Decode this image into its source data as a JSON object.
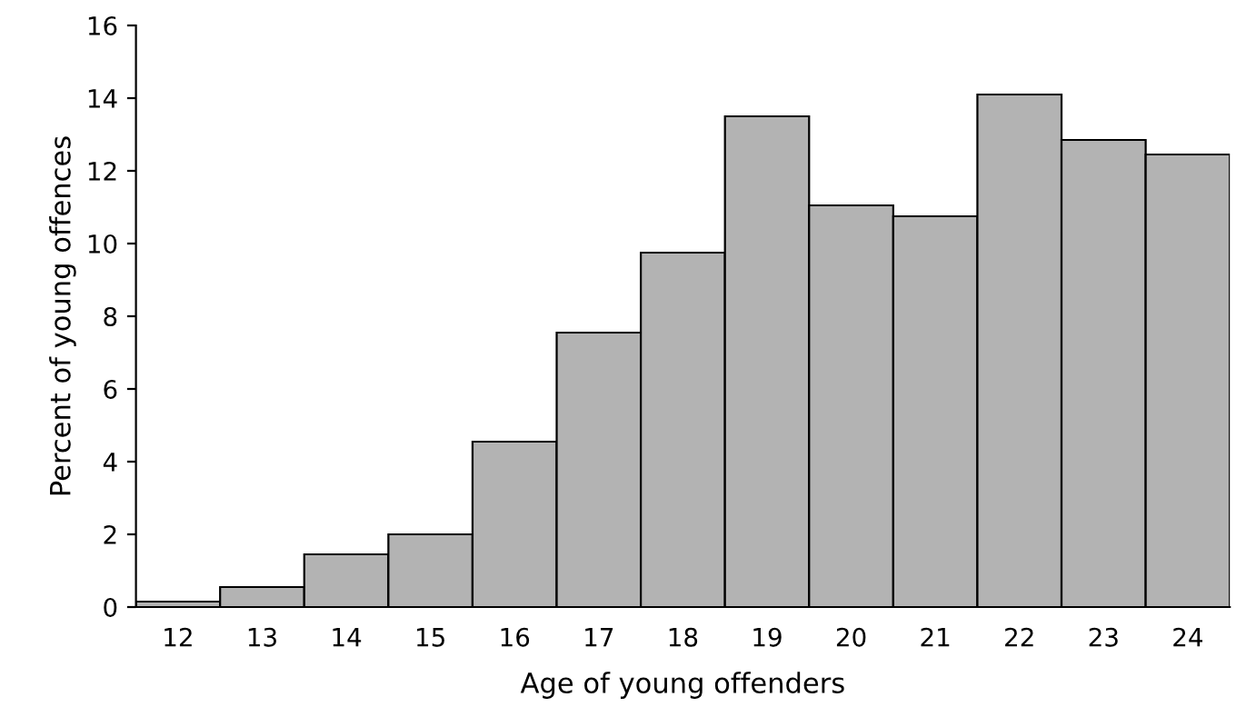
{
  "chart_data": {
    "type": "bar",
    "xlabel": "Age of young offenders",
    "ylabel": "Percent of young offences",
    "categories": [
      "12",
      "13",
      "14",
      "15",
      "16",
      "17",
      "18",
      "19",
      "20",
      "21",
      "22",
      "23",
      "24"
    ],
    "values": [
      0.15,
      0.55,
      1.45,
      2.0,
      4.55,
      7.55,
      9.75,
      13.5,
      11.05,
      10.75,
      14.1,
      12.85,
      12.45
    ],
    "color": "#b3b3b3",
    "ylim": [
      0,
      16
    ],
    "yticks": [
      0,
      2,
      4,
      6,
      8,
      10,
      12,
      14,
      16
    ],
    "grid": false
  }
}
